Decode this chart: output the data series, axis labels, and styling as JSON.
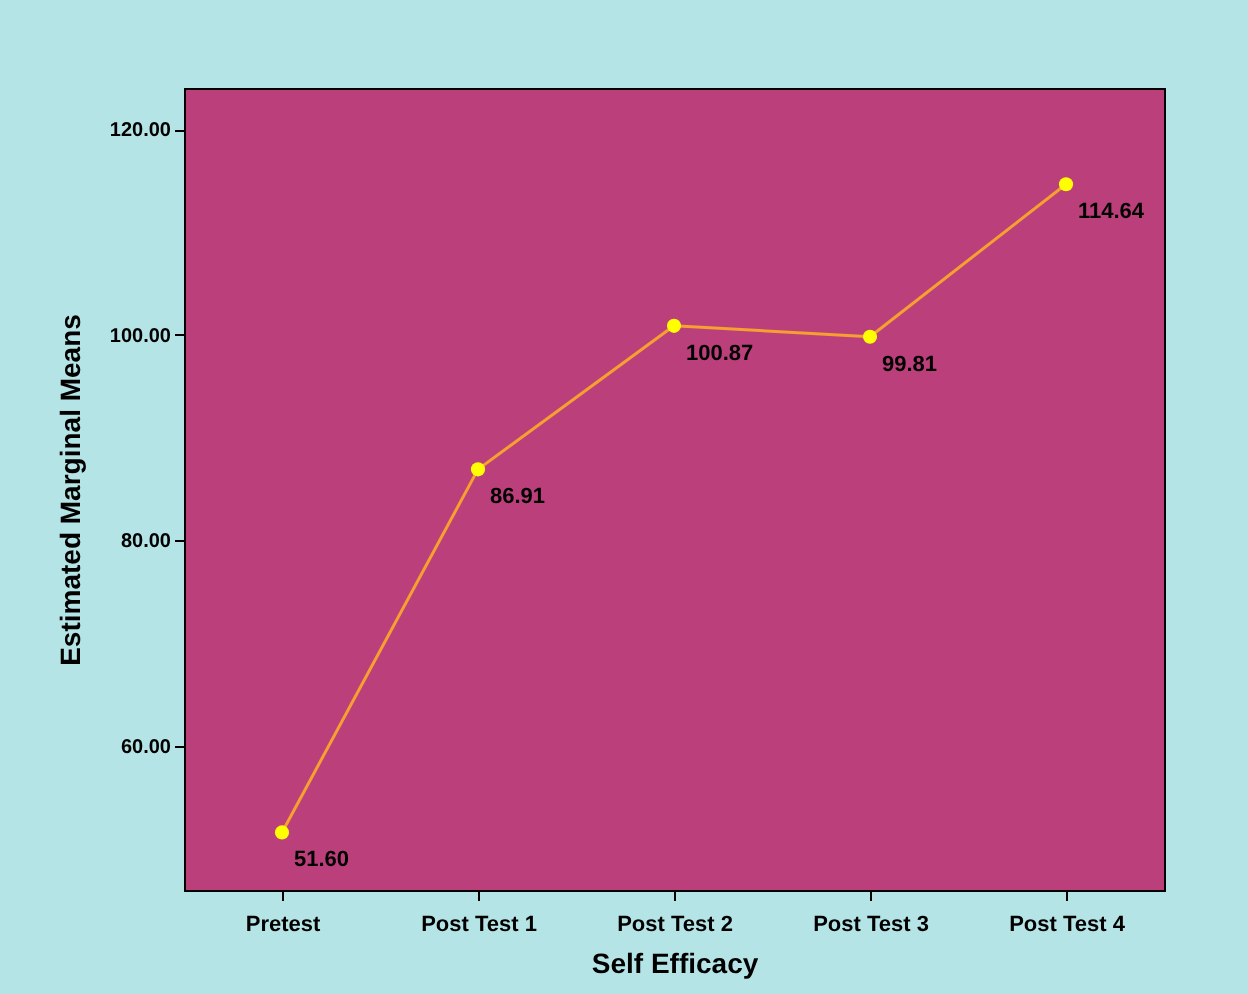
{
  "chart_data": {
    "type": "line",
    "xlabel": "Self Efficacy",
    "ylabel": "Estimated Marginal Means",
    "categories": [
      "Pretest",
      "Post Test 1",
      "Post Test 2",
      "Post Test 3",
      "Post Test 4"
    ],
    "series": [
      {
        "color": "#f5a030",
        "values": [
          51.6,
          86.91,
          100.87,
          99.81,
          114.64
        ],
        "value_labels": [
          "51.60",
          "86.91",
          "100.87",
          "99.81",
          "114.64"
        ]
      }
    ],
    "ylim": [
      46,
      124
    ],
    "yticks": [
      {
        "value": 60,
        "label": "60.00"
      },
      {
        "value": 80,
        "label": "80.00"
      },
      {
        "value": 100,
        "label": "100.00"
      },
      {
        "value": 120,
        "label": "120.00"
      }
    ],
    "grid": false,
    "marker": "circle",
    "line_style": "solid"
  }
}
